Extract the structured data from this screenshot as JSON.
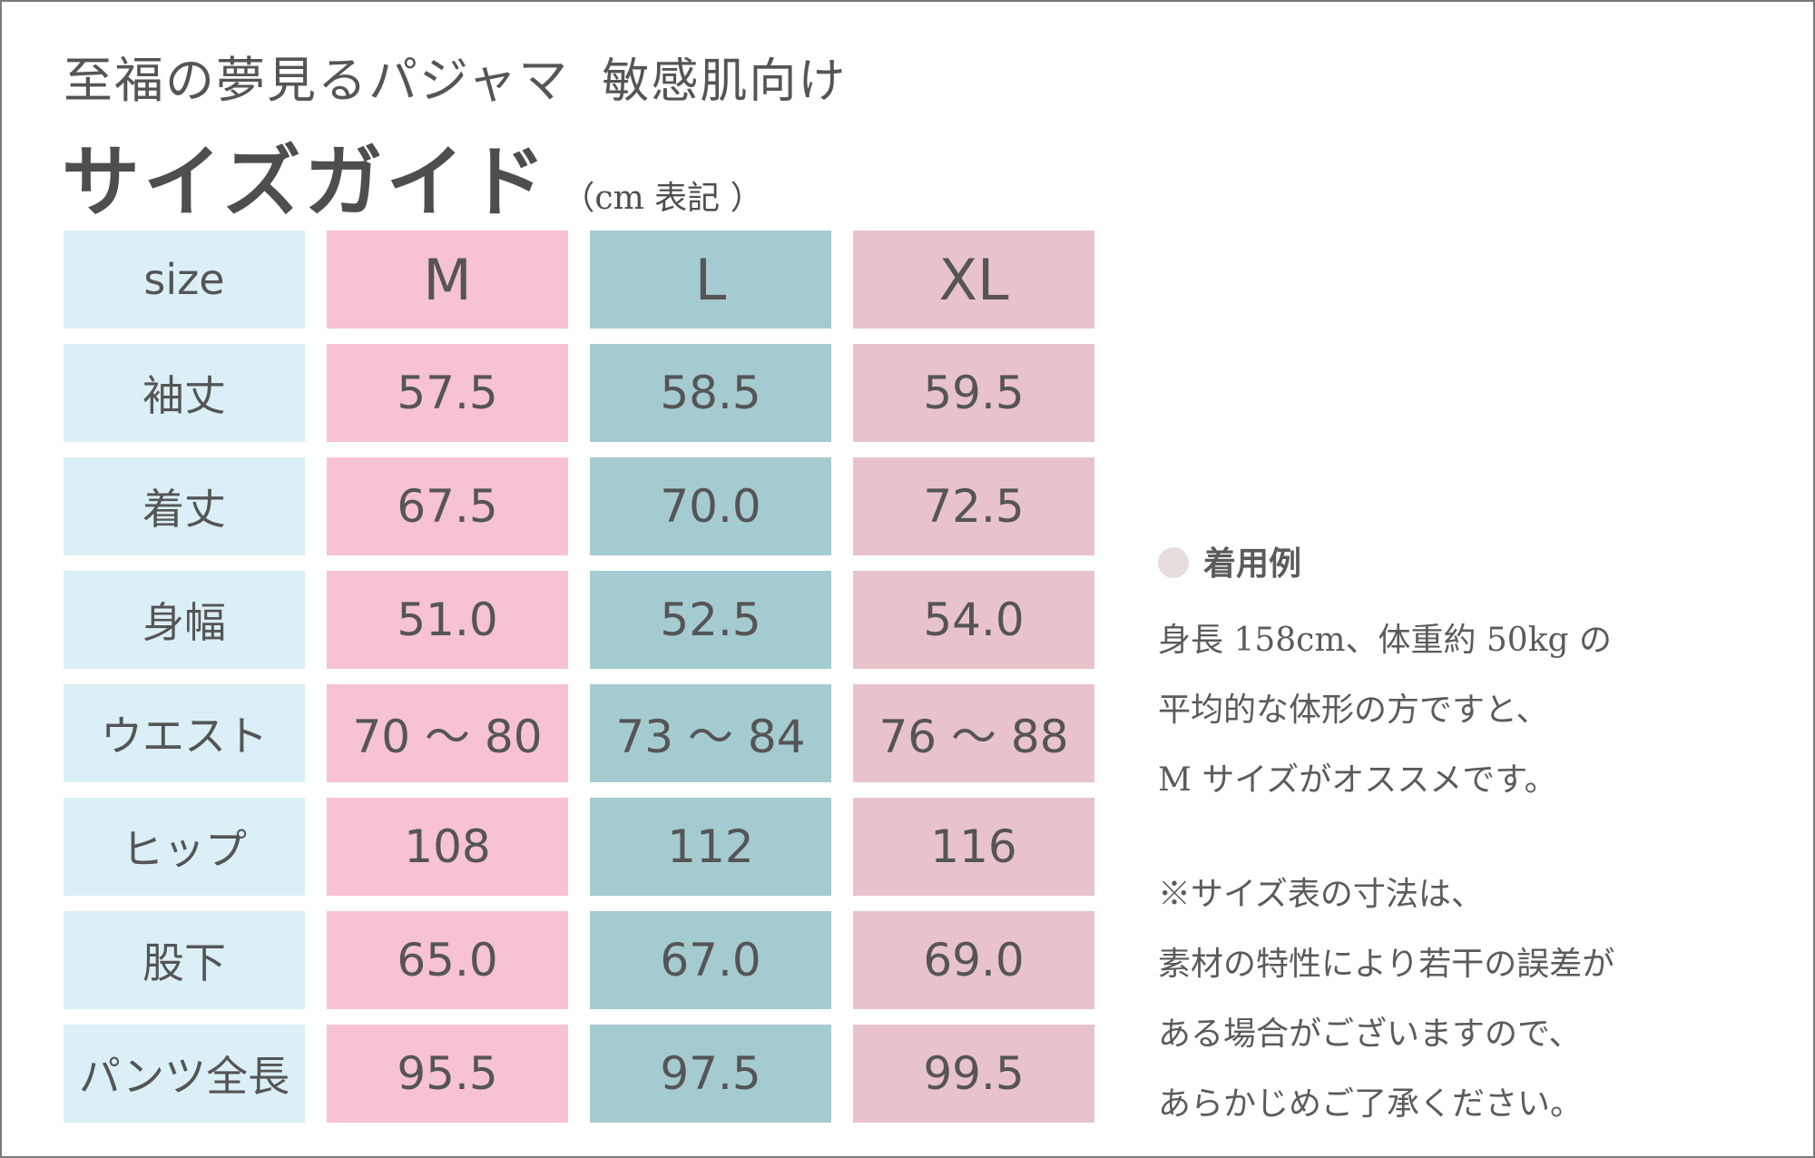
{
  "header": {
    "title": "至福の夢見るパジャマ",
    "subtitle": "敏感肌向け",
    "heading": "サイズガイド",
    "unit_note": "（cm 表記 ）"
  },
  "table": {
    "header_label": "size",
    "sizes": [
      "M",
      "L",
      "XL"
    ],
    "rows": [
      {
        "label": "袖丈",
        "values": [
          "57.5",
          "58.5",
          "59.5"
        ]
      },
      {
        "label": "着丈",
        "values": [
          "67.5",
          "70.0",
          "72.5"
        ]
      },
      {
        "label": "身幅",
        "values": [
          "51.0",
          "52.5",
          "54.0"
        ]
      },
      {
        "label": "ウエスト",
        "values": [
          "70 〜 80",
          "73 〜 84",
          "76 〜 88"
        ]
      },
      {
        "label": "ヒップ",
        "values": [
          "108",
          "112",
          "116"
        ]
      },
      {
        "label": "股下",
        "values": [
          "65.0",
          "67.0",
          "69.0"
        ]
      },
      {
        "label": "パンツ全長",
        "values": [
          "95.5",
          "97.5",
          "99.5"
        ]
      }
    ]
  },
  "note": {
    "title": "着用例",
    "lines": [
      "身長 158cm、体重約 50kg の",
      "平均的な体形の方ですと、",
      "M サイズがオススメです。"
    ],
    "disclaimer": [
      "※サイズ表の寸法は、",
      "素材の特性により若干の誤差が",
      "ある場合がございますので、",
      "あらかじめご了承ください。"
    ]
  },
  "colors": {
    "label_bg": "#dbeff6",
    "m_bg": "#f7c2d3",
    "l_bg": "#a4cbd0",
    "xl_bg": "#e8c3cb",
    "text": "#555555"
  }
}
